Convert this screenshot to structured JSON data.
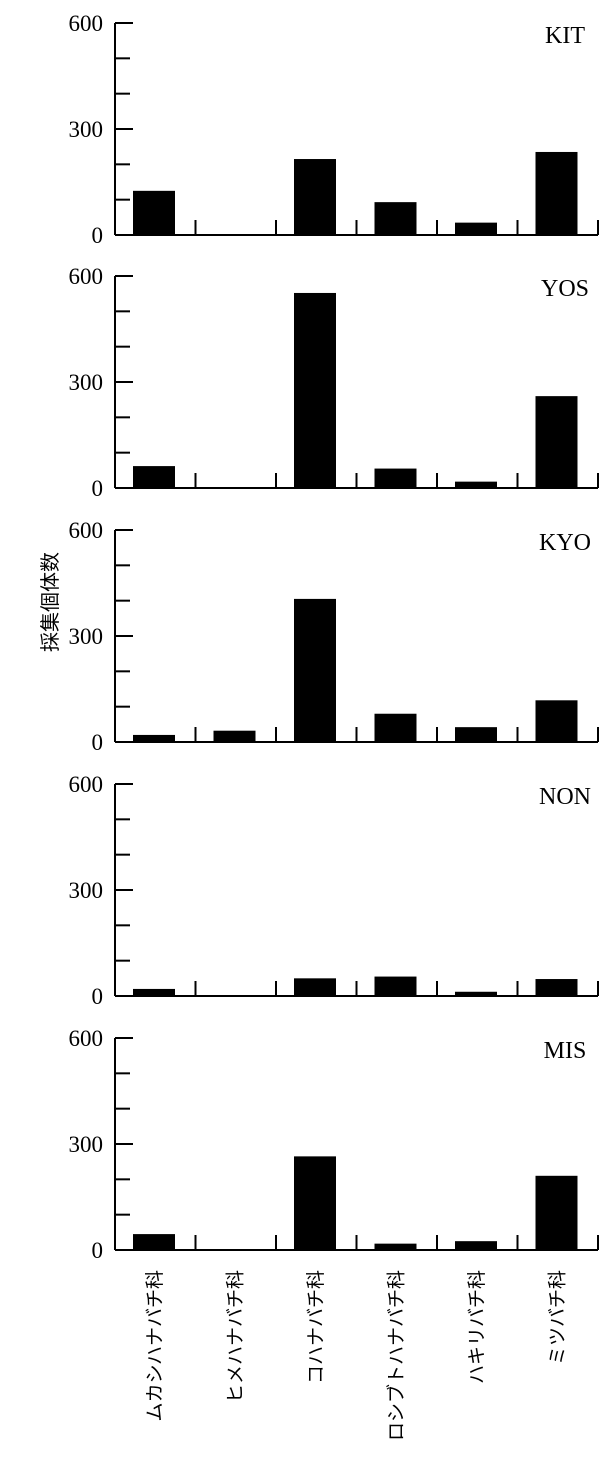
{
  "chart_data": {
    "type": "bar",
    "ylabel": "採集個体数",
    "categories": [
      "ムカシハナバチ科",
      "ヒメハナバチ科",
      "コハナバチ科",
      "ロシブトハナバチ科",
      "ハキリバチ科",
      "ミツバチ科"
    ],
    "yticks": [
      "0",
      "300",
      "600"
    ],
    "ylim": [
      0,
      600
    ],
    "panels": [
      {
        "name": "KIT",
        "values": [
          125,
          0,
          215,
          93,
          35,
          235
        ]
      },
      {
        "name": "YOS",
        "values": [
          62,
          0,
          552,
          55,
          18,
          260
        ]
      },
      {
        "name": "KYO",
        "values": [
          20,
          32,
          405,
          80,
          42,
          118
        ]
      },
      {
        "name": "NON",
        "values": [
          20,
          0,
          50,
          55,
          12,
          48
        ]
      },
      {
        "name": "MIS",
        "values": [
          45,
          0,
          265,
          18,
          25,
          210
        ]
      }
    ]
  }
}
